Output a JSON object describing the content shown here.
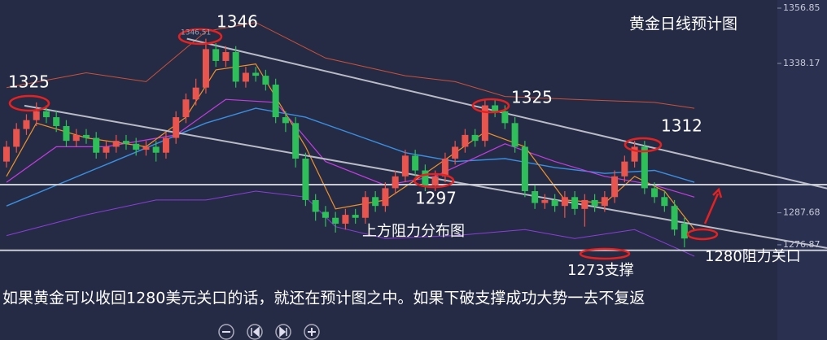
{
  "chart_data": {
    "type": "candlestick",
    "title": "黄金日线预计图",
    "caption": "如果黄金可以收回1280美元关口的话，就还在预计图之中。如果下破支撑成功大势一去不复返",
    "up_color": "#e8554e",
    "down_color": "#2fbf5a",
    "ylim": [
      1244.7,
      1359.6
    ],
    "xlim": [
      -0.65,
      82.3
    ],
    "yticks": [
      1356.85,
      1338.17,
      1287.68,
      1276.87
    ],
    "categories": [
      null,
      null,
      null,
      null,
      null,
      null,
      null,
      null,
      null,
      null,
      null,
      null,
      null,
      null,
      null,
      null,
      null,
      null,
      null,
      null,
      null,
      null,
      null,
      null,
      null,
      null,
      null,
      null,
      null,
      null,
      null,
      null,
      null,
      null,
      null,
      null,
      null,
      null,
      null,
      null,
      null,
      null,
      null,
      null,
      null,
      null,
      null,
      null,
      null,
      null,
      null,
      null,
      null,
      null,
      null,
      null,
      null,
      null,
      null,
      null,
      null,
      null,
      null,
      null,
      null,
      null,
      null,
      null,
      null
    ],
    "open": [
      1305,
      1310,
      1316,
      1319,
      1322,
      1320,
      1317,
      1312,
      1314,
      1313,
      1308,
      1310,
      1312,
      1311,
      1309,
      1310,
      1308,
      1313,
      1320,
      1326,
      1330,
      1343,
      1339,
      1342,
      1332,
      1335,
      1334,
      1331,
      1320,
      1318,
      1306,
      1292,
      1288,
      1286,
      1284,
      1287,
      1286,
      1293,
      1290,
      1296,
      1300,
      1307,
      1302,
      1297,
      1300,
      1306,
      1310,
      1314,
      1312,
      1324,
      1322,
      1318,
      1310,
      1295,
      1291,
      1292,
      1290,
      1293,
      1289,
      1292,
      1290,
      1293,
      1300,
      1305,
      1310,
      1296,
      1293,
      1290,
      1284
    ],
    "high": [
      1312,
      1318,
      1321,
      1325,
      1324,
      1322,
      1319,
      1316,
      1316,
      1315,
      1312,
      1314,
      1314,
      1313,
      1312,
      1312,
      1315,
      1322,
      1328,
      1333,
      1346.51,
      1345,
      1344,
      1344,
      1337,
      1337,
      1336,
      1333,
      1322,
      1320,
      1308,
      1294,
      1290,
      1288,
      1289,
      1289,
      1295,
      1295,
      1298,
      1302,
      1309,
      1309,
      1304,
      1302,
      1308,
      1312,
      1316,
      1316,
      1326,
      1326,
      1324,
      1320,
      1312,
      1297,
      1294,
      1294,
      1295,
      1295,
      1294,
      1294,
      1295,
      1302,
      1307,
      1312,
      1312,
      1298,
      1295,
      1292,
      1286
    ],
    "low": [
      1303,
      1308,
      1314,
      1317,
      1318,
      1315,
      1310,
      1310,
      1311,
      1306,
      1306,
      1308,
      1309,
      1307,
      1307,
      1305,
      1306,
      1311,
      1318,
      1324,
      1328,
      1337,
      1337,
      1330,
      1330,
      1332,
      1329,
      1318,
      1315,
      1303,
      1290,
      1285,
      1283,
      1281,
      1282,
      1284,
      1284,
      1288,
      1288,
      1294,
      1298,
      1300,
      1295,
      1295,
      1298,
      1304,
      1308,
      1310,
      1310,
      1320,
      1316,
      1308,
      1293,
      1289,
      1289,
      1288,
      1286,
      1287,
      1283,
      1288,
      1288,
      1291,
      1298,
      1303,
      1294,
      1291,
      1288,
      1280,
      1276
    ],
    "close": [
      1310,
      1316,
      1319,
      1322,
      1320,
      1317,
      1312,
      1314,
      1313,
      1308,
      1310,
      1312,
      1311,
      1309,
      1310,
      1308,
      1313,
      1320,
      1326,
      1330,
      1343,
      1339,
      1342,
      1332,
      1335,
      1334,
      1331,
      1320,
      1318,
      1306,
      1292,
      1288,
      1286,
      1284,
      1287,
      1286,
      1293,
      1290,
      1296,
      1300,
      1307,
      1302,
      1297,
      1300,
      1306,
      1310,
      1314,
      1312,
      1324,
      1322,
      1318,
      1310,
      1295,
      1291,
      1292,
      1290,
      1293,
      1289,
      1292,
      1290,
      1293,
      1300,
      1305,
      1310,
      1296,
      1293,
      1290,
      1282,
      1279
    ],
    "overlays": [
      {
        "color": "#3b8fe0",
        "width": 1.4,
        "x": [
          0,
          10,
          20,
          25,
          30,
          35,
          40,
          45,
          50,
          55,
          60,
          65,
          69
        ],
        "values": [
          1290,
          1304,
          1318,
          1323,
          1320,
          1314,
          1308,
          1305,
          1306,
          1303,
          1301,
          1302,
          1298
        ]
      },
      {
        "color": "#c23ee0",
        "width": 1.2,
        "x": [
          0,
          5,
          10,
          17,
          22,
          27,
          32,
          38,
          43,
          50,
          55,
          60,
          65,
          69
        ],
        "values": [
          1298,
          1310,
          1310,
          1314,
          1326,
          1325,
          1305,
          1297,
          1300,
          1311,
          1305,
          1300,
          1297,
          1293
        ]
      },
      {
        "color": "#f0922a",
        "width": 1.2,
        "x": [
          0,
          3,
          8,
          14,
          18,
          21,
          25,
          30,
          33,
          38,
          42,
          48,
          52,
          56,
          60,
          63,
          66,
          69
        ],
        "values": [
          1300,
          1318,
          1313,
          1310,
          1320,
          1336,
          1338,
          1310,
          1289,
          1292,
          1301,
          1315,
          1310,
          1292,
          1291,
          1300,
          1295,
          1282
        ]
      },
      {
        "color": "#c9523a",
        "width": 1,
        "x": [
          0,
          8,
          14,
          20,
          25,
          32,
          40,
          45,
          50,
          57,
          65,
          69
        ],
        "values": [
          1330,
          1335,
          1332,
          1349,
          1352,
          1340,
          1334,
          1332,
          1327,
          1326,
          1325,
          1323
        ]
      },
      {
        "color": "#8a3fd8",
        "width": 1,
        "x": [
          0,
          8,
          15,
          20,
          25,
          30,
          33,
          38,
          45,
          52,
          57,
          63,
          67,
          69
        ],
        "values": [
          1280,
          1287,
          1292,
          1292,
          1295,
          1293,
          1283,
          1279,
          1280,
          1282,
          1279,
          1282,
          1276,
          1273
        ]
      },
      {
        "color": "#b9bcc6",
        "width": 2,
        "x": [
          18.1,
          82.3
        ],
        "values": [
          1346.51,
          1295.9
        ]
      },
      {
        "color": "#b9bcc6",
        "width": 2,
        "x": [
          1.8,
          82.3
        ],
        "values": [
          1323.9,
          1275.8
        ]
      },
      {
        "color": "#c9ccd4",
        "width": 2,
        "x": [
          -0.65,
          82.3
        ],
        "values": [
          1297.2,
          1297.2
        ]
      },
      {
        "color": "#c9ccd4",
        "width": 2,
        "x": [
          -0.65,
          82.3
        ],
        "values": [
          1275,
          1275
        ]
      }
    ],
    "annotations": [
      "1325",
      "1346",
      "1346.51",
      "1325",
      "1297",
      "1312",
      "上方阻力分布图",
      "1273支撑",
      "1280阻力关口"
    ]
  }
}
